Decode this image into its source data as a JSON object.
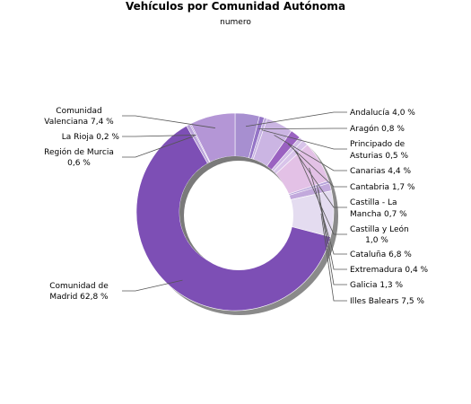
{
  "chart_data": {
    "type": "pie",
    "title": "Vehículos por Comunidad Autónoma",
    "subtitle": "numero",
    "legend": "none",
    "slices": [
      {
        "label": "Andalucía 4,0 %",
        "value": 4.0,
        "color": "#a78fd0"
      },
      {
        "label": "Aragón 0,8 %",
        "value": 0.8,
        "color": "#9474c6"
      },
      {
        "label": "Principado de Asturias 0,5 %",
        "value": 0.5,
        "color": "#c3aee0"
      },
      {
        "label": "Canarias 4,4 %",
        "value": 4.4,
        "color": "#cbb5e3"
      },
      {
        "label": "Cantabria 1,7 %",
        "value": 1.7,
        "color": "#9a62c1"
      },
      {
        "label": "Castilla - La Mancha 0,7 %",
        "value": 0.7,
        "color": "#d1bde6"
      },
      {
        "label": "Castilla y León 1,0 %",
        "value": 1.0,
        "color": "#d8c4ea"
      },
      {
        "label": "Cataluña 6,8 %",
        "value": 6.8,
        "color": "#e3c1e6"
      },
      {
        "label": "Extremadura 0,4 %",
        "value": 0.4,
        "color": "#b7a3da"
      },
      {
        "label": "Galicia 1,3 %",
        "value": 1.3,
        "color": "#c2a9dc"
      },
      {
        "label": "Illes Balears 7,5 %",
        "value": 7.5,
        "color": "#e4dcf0"
      },
      {
        "label": "Comunidad de Madrid 62,8 %",
        "value": 62.8,
        "color": "#7d4fb5"
      },
      {
        "label": "Región de Murcia 0,6 %",
        "value": 0.6,
        "color": "#b9a2d9"
      },
      {
        "label": "La Rioja 0,2 %",
        "value": 0.2,
        "color": "#a98ad2"
      },
      {
        "label": "Comunidad Valenciana 7,4 %",
        "value": 7.4,
        "color": "#b496d6"
      }
    ]
  }
}
